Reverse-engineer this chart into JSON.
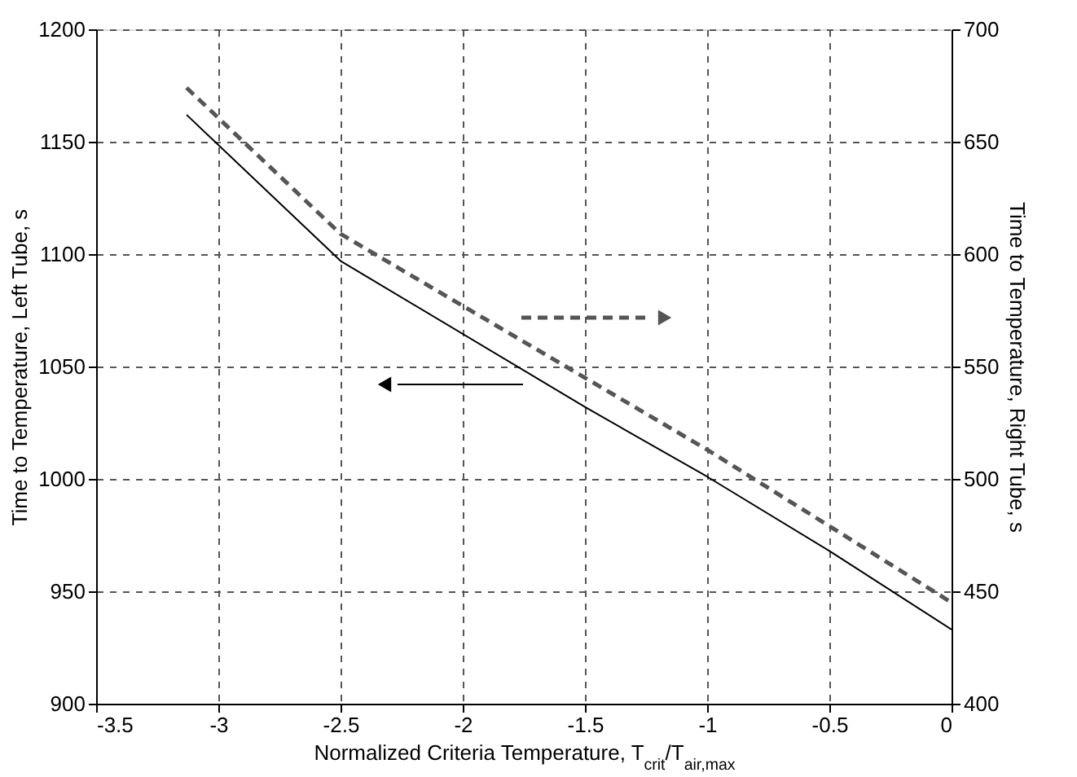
{
  "chart_data": {
    "type": "line",
    "xlabel": "Normalized Criteria Temperature, T$_{crit}$/T$_{air,max}$",
    "ylabel": "Time to Temperature, Left Tube, s",
    "y2label": "Time to Temperature, Right Tube, s",
    "series": [
      {
        "color": "#000000",
        "line_style": "solid",
        "x": [
          -3.13,
          -2.5,
          -1.5,
          -1,
          -0.5,
          0
        ],
        "values": [
          1162,
          1097,
          1032,
          1001,
          968,
          933
        ]
      },
      {
        "color": "#555555",
        "line_style": "dashed",
        "axis": "y2",
        "x": [
          -3.13,
          -2.5,
          -1.5,
          -1,
          -0.5,
          0
        ],
        "values": [
          674,
          609,
          545,
          513,
          479,
          445
        ]
      }
    ],
    "xlim": [
      -3.5,
      0
    ],
    "xticks": [
      -3.5,
      -3,
      -2.5,
      -2,
      -1.5,
      -1,
      -0.5,
      0
    ],
    "ylim": [
      900,
      1200
    ],
    "yticks": [
      900,
      950,
      1000,
      1050,
      1100,
      1150,
      1200
    ],
    "y2lim": [
      400,
      700
    ],
    "y2ticks": [
      400,
      450,
      500,
      550,
      600,
      650,
      700
    ],
    "grid": true,
    "marker": "none"
  }
}
